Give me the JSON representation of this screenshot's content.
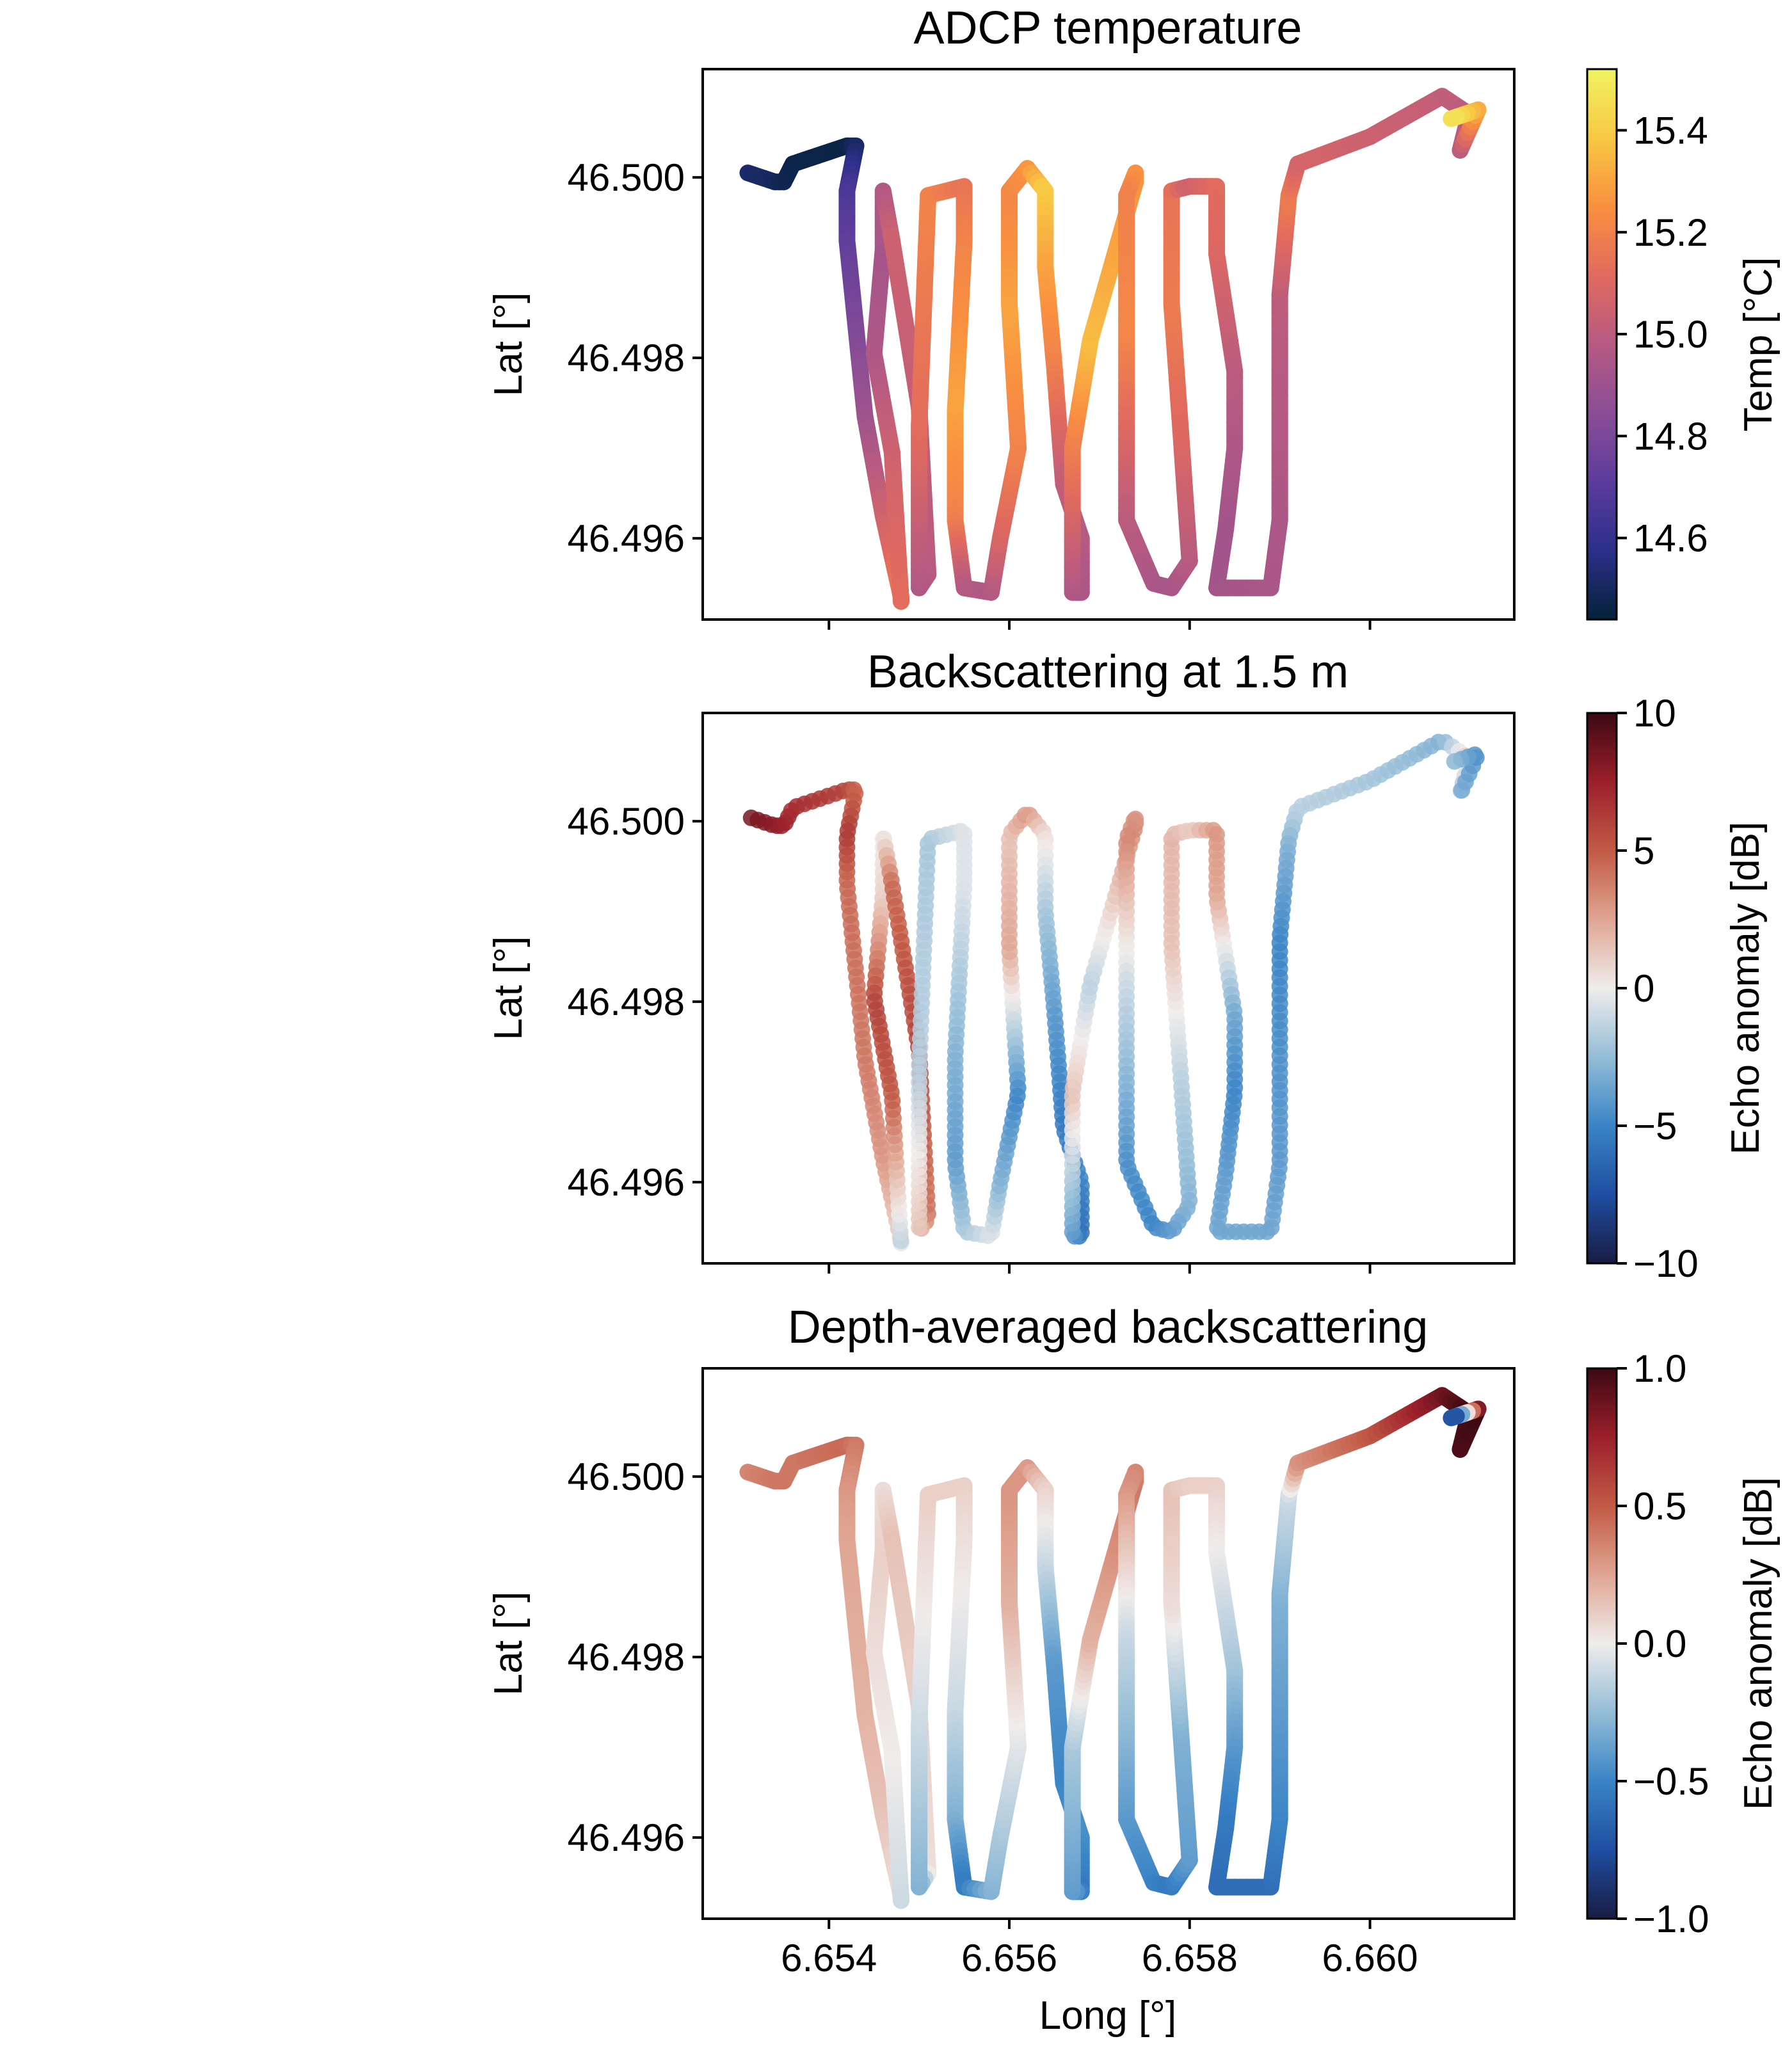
{
  "figure": {
    "x_axis_label": "Long [°]",
    "x_ticks": [
      6.654,
      6.656,
      6.658,
      6.66
    ],
    "x_tick_labels": [
      "6.654",
      "6.656",
      "6.658",
      "6.660"
    ],
    "y_axis_label": "Lat [°]",
    "y_ticks": [
      46.496,
      46.498,
      46.5
    ],
    "y_tick_labels": [
      "46.496",
      "46.498",
      "46.500"
    ]
  },
  "chart_data": [
    {
      "type": "scatter",
      "title": "ADCP temperature",
      "xlabel": "",
      "ylabel": "Lat [°]",
      "xlim": [
        6.6526,
        6.6616
      ],
      "ylim": [
        46.4951,
        46.5012
      ],
      "colormap": "thermal",
      "colormap_stops": [
        "#04223a",
        "#2c2f8a",
        "#5b3c9c",
        "#8a4d96",
        "#b65a82",
        "#e16a5e",
        "#f99040",
        "#f8c843",
        "#f0f362"
      ],
      "colorbar": {
        "label": "Temp [°C]",
        "range": [
          14.44,
          15.52
        ],
        "ticks": [
          14.6,
          14.8,
          15.0,
          15.2,
          15.4
        ],
        "tick_labels": [
          "14.6",
          "14.8",
          "15.0",
          "15.2",
          "15.4"
        ]
      },
      "track": {
        "lon": [
          6.6531,
          6.6534,
          6.6535,
          6.6536,
          6.6542,
          6.6543,
          6.6542,
          6.6542,
          6.6544,
          6.6546,
          6.6548,
          6.6548,
          6.6547,
          6.6545,
          6.6546,
          6.6546,
          6.6547,
          6.655,
          6.6551,
          6.655,
          6.655,
          6.6551,
          6.6555,
          6.6555,
          6.6554,
          6.6554,
          6.6555,
          6.6558,
          6.6559,
          6.6561,
          6.656,
          6.656,
          6.6562,
          6.6564,
          6.6564,
          6.6565,
          6.6566,
          6.6568,
          6.6568,
          6.6567,
          6.6567,
          6.6569,
          6.6574,
          6.6574,
          6.6573,
          6.6573,
          6.6573,
          6.6576,
          6.6578,
          6.658,
          6.6579,
          6.6578,
          6.6578,
          6.658,
          6.6583,
          6.6583,
          6.6585,
          6.6585,
          6.6584,
          6.6583,
          6.6589,
          6.659,
          6.659,
          6.6591,
          6.6592,
          6.66,
          6.6608,
          6.6611,
          6.661,
          6.6612,
          6.6609
        ],
        "lat": [
          46.50005,
          46.49995,
          46.49995,
          46.50015,
          46.50035,
          46.50035,
          46.49985,
          46.4993,
          46.49735,
          46.49625,
          46.49535,
          46.4953,
          46.49695,
          46.49805,
          46.4992,
          46.49985,
          46.4993,
          46.49745,
          46.4956,
          46.49545,
          46.49725,
          46.4998,
          46.4999,
          46.4993,
          46.4974,
          46.4962,
          46.49545,
          46.4954,
          46.496,
          46.497,
          46.4986,
          46.49985,
          46.5001,
          46.49985,
          46.499,
          46.4979,
          46.4966,
          46.496,
          46.4954,
          46.4954,
          46.497,
          46.4982,
          46.49995,
          46.50005,
          46.4998,
          46.4982,
          46.4962,
          46.4955,
          46.49545,
          46.49575,
          46.4972,
          46.4986,
          46.49985,
          46.4999,
          46.4999,
          46.49915,
          46.49785,
          46.497,
          46.4961,
          46.49545,
          46.49545,
          46.4962,
          46.4987,
          46.4998,
          46.50015,
          46.50045,
          46.5009,
          46.5007,
          46.5003,
          46.50075,
          46.50065
        ],
        "value": [
          14.52,
          14.5,
          14.48,
          14.47,
          14.46,
          14.5,
          14.66,
          14.72,
          14.9,
          15.05,
          15.17,
          15.13,
          15.06,
          14.96,
          14.93,
          14.96,
          15.05,
          15.02,
          14.99,
          14.96,
          15.12,
          15.21,
          15.15,
          15.2,
          15.3,
          15.2,
          14.98,
          14.96,
          15.08,
          15.2,
          15.3,
          15.22,
          15.25,
          15.4,
          15.3,
          15.2,
          15.02,
          14.98,
          14.95,
          14.95,
          15.18,
          15.36,
          15.26,
          15.26,
          15.2,
          15.22,
          15.0,
          14.95,
          14.93,
          14.98,
          15.1,
          15.18,
          15.15,
          15.05,
          15.12,
          15.1,
          15.0,
          14.96,
          14.92,
          14.92,
          14.94,
          14.95,
          15.0,
          15.18,
          15.08,
          15.05,
          15.02,
          15.0,
          14.98,
          15.3,
          15.48
        ]
      }
    },
    {
      "type": "scatter",
      "title": "Backscattering at 1.5 m",
      "xlabel": "",
      "ylabel": "Lat [°]",
      "xlim": [
        6.6526,
        6.6616
      ],
      "ylim": [
        46.4951,
        46.5012
      ],
      "colormap": "balance",
      "colormap_stops": [
        "#181c43",
        "#1f4ea0",
        "#3a84c6",
        "#94bdd7",
        "#f0eceb",
        "#e0a592",
        "#c25a45",
        "#9b1f2a",
        "#3c0912"
      ],
      "colorbar": {
        "label": "Echo anomaly [dB]",
        "range": [
          -10,
          10
        ],
        "ticks": [
          -10,
          -5,
          0,
          5,
          10
        ],
        "tick_labels": [
          "−10",
          "−5",
          "0",
          "5",
          "10"
        ]
      },
      "track": {
        "lon": [
          6.6531,
          6.6534,
          6.6535,
          6.6536,
          6.6542,
          6.6543,
          6.6542,
          6.6542,
          6.6544,
          6.6546,
          6.6548,
          6.6548,
          6.6547,
          6.6545,
          6.6546,
          6.6546,
          6.6547,
          6.655,
          6.6551,
          6.655,
          6.655,
          6.6551,
          6.6555,
          6.6555,
          6.6554,
          6.6554,
          6.6555,
          6.6558,
          6.6559,
          6.6561,
          6.656,
          6.656,
          6.6562,
          6.6564,
          6.6564,
          6.6565,
          6.6566,
          6.6568,
          6.6568,
          6.6567,
          6.6567,
          6.6569,
          6.6574,
          6.6574,
          6.6573,
          6.6573,
          6.6573,
          6.6576,
          6.6578,
          6.658,
          6.6579,
          6.6578,
          6.6578,
          6.658,
          6.6583,
          6.6583,
          6.6585,
          6.6585,
          6.6584,
          6.6583,
          6.6589,
          6.659,
          6.659,
          6.6591,
          6.6592,
          6.66,
          6.6608,
          6.6611,
          6.661,
          6.6612,
          6.6609
        ],
        "lat": [
          46.50005,
          46.49995,
          46.49995,
          46.50015,
          46.50035,
          46.50035,
          46.49985,
          46.4993,
          46.49735,
          46.49625,
          46.49535,
          46.4953,
          46.49695,
          46.49805,
          46.4992,
          46.49985,
          46.4993,
          46.49745,
          46.4956,
          46.49545,
          46.49725,
          46.4998,
          46.4999,
          46.4993,
          46.4974,
          46.4962,
          46.49545,
          46.4954,
          46.496,
          46.497,
          46.4986,
          46.49985,
          46.5001,
          46.49985,
          46.499,
          46.4979,
          46.4966,
          46.496,
          46.4954,
          46.4954,
          46.497,
          46.4982,
          46.49995,
          46.50005,
          46.4998,
          46.4982,
          46.4962,
          46.4955,
          46.49545,
          46.49575,
          46.4972,
          46.4986,
          46.49985,
          46.4999,
          46.4999,
          46.49915,
          46.49785,
          46.497,
          46.4961,
          46.49545,
          46.49545,
          46.4962,
          46.4987,
          46.4998,
          46.50015,
          46.50045,
          46.5009,
          46.5007,
          46.5003,
          46.50075,
          46.50065
        ],
        "value": [
          8.5,
          8.0,
          7.5,
          7.0,
          6.0,
          4.5,
          6.5,
          4.5,
          4.0,
          3.0,
          1.0,
          -1.5,
          5.0,
          6.0,
          1.0,
          0.0,
          4.5,
          6.0,
          4.0,
          1.5,
          -1.5,
          -2.0,
          -0.5,
          -0.5,
          -3.0,
          -4.0,
          -2.0,
          -0.5,
          -3.0,
          -5.0,
          2.5,
          1.5,
          3.0,
          0.5,
          -2.0,
          -4.0,
          -5.5,
          -5.0,
          -6.0,
          -4.0,
          1.5,
          -1.5,
          3.5,
          3.0,
          3.5,
          -1.0,
          -4.5,
          -5.0,
          -4.0,
          -3.0,
          -1.5,
          1.5,
          2.0,
          1.0,
          3.0,
          2.5,
          -3.5,
          -5.0,
          -4.0,
          -3.5,
          -3.5,
          -4.0,
          -5.0,
          -3.0,
          -1.5,
          -2.0,
          -3.0,
          1.5,
          -3.0,
          -4.5,
          -2.5
        ]
      }
    },
    {
      "type": "scatter",
      "title": "Depth-averaged backscattering",
      "xlabel": "Long [°]",
      "ylabel": "Lat [°]",
      "xlim": [
        6.6526,
        6.6616
      ],
      "ylim": [
        46.4951,
        46.5012
      ],
      "colormap": "balance",
      "colormap_stops": [
        "#181c43",
        "#1f4ea0",
        "#3a84c6",
        "#94bdd7",
        "#f0eceb",
        "#e0a592",
        "#c25a45",
        "#9b1f2a",
        "#3c0912"
      ],
      "colorbar": {
        "label": "Echo anomaly [dB]",
        "range": [
          -1.0,
          1.0
        ],
        "ticks": [
          -1.0,
          -0.5,
          0.0,
          0.5,
          1.0
        ],
        "tick_labels": [
          "−1.0",
          "−0.5",
          "0.0",
          "0.5",
          "1.0"
        ]
      },
      "track": {
        "lon": [
          6.6531,
          6.6534,
          6.6535,
          6.6536,
          6.6542,
          6.6543,
          6.6542,
          6.6542,
          6.6544,
          6.6546,
          6.6548,
          6.6548,
          6.6547,
          6.6545,
          6.6546,
          6.6546,
          6.6547,
          6.655,
          6.6551,
          6.655,
          6.655,
          6.6551,
          6.6555,
          6.6555,
          6.6554,
          6.6554,
          6.6555,
          6.6558,
          6.6559,
          6.6561,
          6.656,
          6.656,
          6.6562,
          6.6564,
          6.6564,
          6.6565,
          6.6566,
          6.6568,
          6.6568,
          6.6567,
          6.6567,
          6.6569,
          6.6574,
          6.6574,
          6.6573,
          6.6573,
          6.6573,
          6.6576,
          6.6578,
          6.658,
          6.6579,
          6.6578,
          6.6578,
          6.658,
          6.6583,
          6.6583,
          6.6585,
          6.6585,
          6.6584,
          6.6583,
          6.6589,
          6.659,
          6.659,
          6.6591,
          6.6592,
          6.66,
          6.6608,
          6.6611,
          6.661,
          6.6612,
          6.6609
        ],
        "lat": [
          46.50005,
          46.49995,
          46.49995,
          46.50015,
          46.50035,
          46.50035,
          46.49985,
          46.4993,
          46.49735,
          46.49625,
          46.49535,
          46.4953,
          46.49695,
          46.49805,
          46.4992,
          46.49985,
          46.4993,
          46.49745,
          46.4956,
          46.49545,
          46.49725,
          46.4998,
          46.4999,
          46.4993,
          46.4974,
          46.4962,
          46.49545,
          46.4954,
          46.496,
          46.497,
          46.4986,
          46.49985,
          46.5001,
          46.49985,
          46.499,
          46.4979,
          46.4966,
          46.496,
          46.4954,
          46.4954,
          46.497,
          46.4982,
          46.49995,
          46.50005,
          46.4998,
          46.4982,
          46.4962,
          46.4955,
          46.49545,
          46.49575,
          46.4972,
          46.4986,
          46.49985,
          46.4999,
          46.4999,
          46.49915,
          46.49785,
          46.497,
          46.4961,
          46.49545,
          46.49545,
          46.4962,
          46.4987,
          46.4998,
          46.50015,
          46.50045,
          46.5009,
          46.5007,
          46.5003,
          46.50075,
          46.50065
        ],
        "value": [
          0.35,
          0.4,
          0.4,
          0.4,
          0.45,
          0.4,
          0.3,
          0.25,
          0.2,
          0.15,
          0.05,
          -0.1,
          0.0,
          0.05,
          0.1,
          0.05,
          0.15,
          0.1,
          0.05,
          -0.3,
          -0.1,
          0.1,
          0.1,
          0.05,
          -0.1,
          -0.3,
          -0.55,
          -0.3,
          -0.2,
          -0.05,
          0.2,
          0.3,
          0.3,
          0.1,
          -0.1,
          -0.4,
          -0.5,
          -0.45,
          -0.55,
          -0.4,
          -0.2,
          0.2,
          0.4,
          0.35,
          0.3,
          -0.1,
          -0.4,
          -0.5,
          -0.55,
          -0.4,
          -0.3,
          0.05,
          0.15,
          0.1,
          0.1,
          0.0,
          -0.2,
          -0.4,
          -0.55,
          -0.6,
          -0.6,
          -0.5,
          -0.3,
          -0.1,
          0.3,
          0.5,
          0.85,
          1.0,
          0.95,
          1.0,
          -0.9
        ]
      }
    }
  ]
}
